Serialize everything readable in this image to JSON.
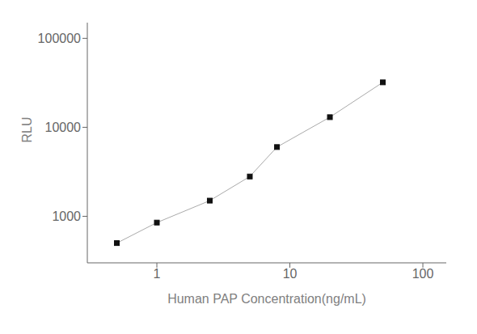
{
  "chart_data": {
    "type": "line",
    "x": [
      0.5,
      1.0,
      2.5,
      5.0,
      8.0,
      20.0,
      50.0
    ],
    "values": [
      500,
      850,
      1500,
      2800,
      6000,
      13000,
      32000
    ],
    "xlabel": "Human PAP Concentration(ng/mL)",
    "ylabel": "RLU",
    "xlim": [
      0.3,
      150
    ],
    "ylim": [
      300,
      150000
    ],
    "xticks": [
      1,
      10,
      100
    ],
    "yticks": [
      1000,
      10000,
      100000
    ],
    "log": true,
    "grid": false,
    "color": "#aaaaaa",
    "colors": [
      "#111111",
      "#111111",
      "#111111",
      "#111111",
      "#111111",
      "#111111",
      "#111111"
    ],
    "marker": "square"
  }
}
